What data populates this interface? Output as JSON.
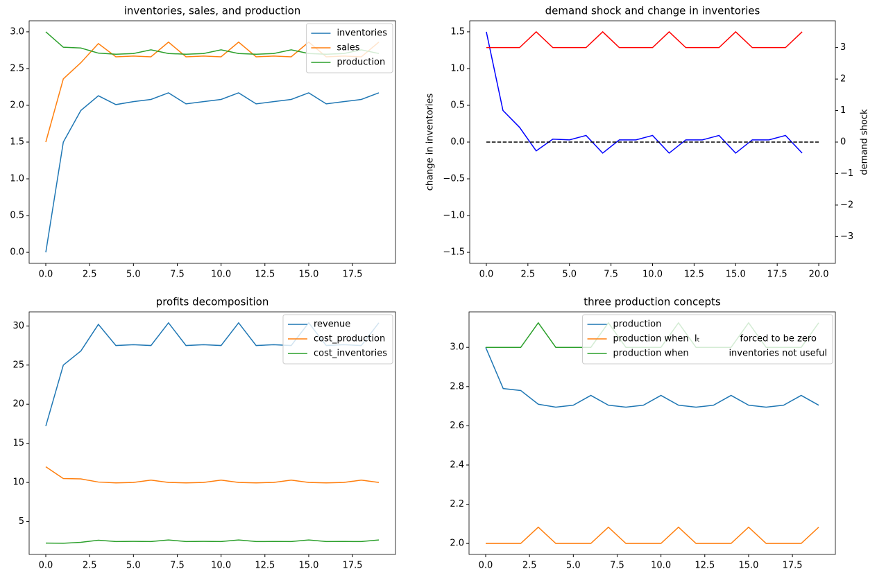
{
  "chart_data": [
    {
      "type": "line",
      "title": "inventories, sales, and production",
      "legend": "upper right",
      "x": [
        0,
        1,
        2,
        3,
        4,
        5,
        6,
        7,
        8,
        9,
        10,
        11,
        12,
        13,
        14,
        15,
        16,
        17,
        18,
        19
      ],
      "xlim": [
        -0.95,
        19.95
      ],
      "xticks": [
        {
          "value": 0,
          "label": "0.0"
        },
        {
          "value": 2.5,
          "label": "2.5"
        },
        {
          "value": 5,
          "label": "5.0"
        },
        {
          "value": 7.5,
          "label": "7.5"
        },
        {
          "value": 10,
          "label": "10.0"
        },
        {
          "value": 12.5,
          "label": "12.5"
        },
        {
          "value": 15,
          "label": "15.0"
        },
        {
          "value": 17.5,
          "label": "17.5"
        }
      ],
      "ylim": [
        -0.15,
        3.15
      ],
      "yticks": [
        {
          "value": 0,
          "label": "0.0"
        },
        {
          "value": 0.5,
          "label": "0.5"
        },
        {
          "value": 1,
          "label": "1.0"
        },
        {
          "value": 1.5,
          "label": "1.5"
        },
        {
          "value": 2,
          "label": "2.0"
        },
        {
          "value": 2.5,
          "label": "2.5"
        },
        {
          "value": 3,
          "label": "3.0"
        }
      ],
      "series": [
        {
          "name": "inventories",
          "color": "#1f77b4",
          "values": [
            0,
            1.5,
            1.93,
            2.13,
            2.01,
            2.05,
            2.08,
            2.17,
            2.02,
            2.05,
            2.08,
            2.17,
            2.02,
            2.05,
            2.08,
            2.17,
            2.02,
            2.05,
            2.08,
            2.17
          ]
        },
        {
          "name": "sales",
          "color": "#ff7f0e",
          "values": [
            1.5,
            2.36,
            2.58,
            2.84,
            2.66,
            2.67,
            2.66,
            2.86,
            2.66,
            2.67,
            2.66,
            2.86,
            2.66,
            2.67,
            2.66,
            2.86,
            2.66,
            2.67,
            2.66,
            2.86
          ]
        },
        {
          "name": "production",
          "color": "#2ca02c",
          "values": [
            3.0,
            2.79,
            2.78,
            2.71,
            2.695,
            2.705,
            2.755,
            2.705,
            2.695,
            2.705,
            2.755,
            2.705,
            2.695,
            2.705,
            2.755,
            2.705,
            2.695,
            2.705,
            2.755,
            2.705
          ]
        }
      ]
    },
    {
      "type": "line",
      "title": "demand shock and change in inventories",
      "ylabel": "change in inventories",
      "ylabel_color": "blue",
      "y2label": "demand shock",
      "y2label_color": "red",
      "x": [
        0,
        1,
        2,
        3,
        4,
        5,
        6,
        7,
        8,
        9,
        10,
        11,
        12,
        13,
        14,
        15,
        16,
        17,
        18,
        19
      ],
      "xlim": [
        -1,
        21
      ],
      "xticks": [
        {
          "value": 0,
          "label": "0.0"
        },
        {
          "value": 2.5,
          "label": "2.5"
        },
        {
          "value": 5,
          "label": "5.0"
        },
        {
          "value": 7.5,
          "label": "7.5"
        },
        {
          "value": 10,
          "label": "10.0"
        },
        {
          "value": 12.5,
          "label": "12.5"
        },
        {
          "value": 15,
          "label": "15.0"
        },
        {
          "value": 17.5,
          "label": "17.5"
        },
        {
          "value": 20,
          "label": "20.0"
        }
      ],
      "ylim": [
        -1.65,
        1.65
      ],
      "yticks": [
        {
          "value": -1.5,
          "label": "−1.5"
        },
        {
          "value": -1,
          "label": "−1.0"
        },
        {
          "value": -0.5,
          "label": "−0.5"
        },
        {
          "value": 0,
          "label": "0.0"
        },
        {
          "value": 0.5,
          "label": "0.5"
        },
        {
          "value": 1,
          "label": "1.0"
        },
        {
          "value": 1.5,
          "label": "1.5"
        }
      ],
      "y2lim": [
        -3.85,
        3.85
      ],
      "y2ticks": [
        {
          "value": -3,
          "label": "−3"
        },
        {
          "value": -2,
          "label": "−2"
        },
        {
          "value": -1,
          "label": "−1"
        },
        0,
        1,
        2,
        3
      ],
      "series": [
        {
          "color": "blue",
          "values": [
            1.5,
            0.43,
            0.2,
            -0.12,
            0.04,
            0.03,
            0.09,
            -0.15,
            0.03,
            0.03,
            0.09,
            -0.15,
            0.03,
            0.03,
            0.09,
            -0.15,
            0.03,
            0.03,
            0.09,
            -0.15
          ]
        },
        {
          "color": "black",
          "linestyle": "dashed",
          "x": [
            0,
            20
          ],
          "values": [
            0,
            0
          ]
        },
        {
          "color": "red",
          "axis": "y2",
          "values": [
            3,
            3,
            3,
            3.5,
            3,
            3,
            3,
            3.5,
            3,
            3,
            3,
            3.5,
            3,
            3,
            3,
            3.5,
            3,
            3,
            3,
            3.5
          ]
        }
      ]
    },
    {
      "type": "line",
      "title": "profits decomposition",
      "legend": "upper right",
      "x": [
        0,
        1,
        2,
        3,
        4,
        5,
        6,
        7,
        8,
        9,
        10,
        11,
        12,
        13,
        14,
        15,
        16,
        17,
        18,
        19
      ],
      "xlim": [
        -0.95,
        19.95
      ],
      "xticks": [
        {
          "value": 0,
          "label": "0.0"
        },
        {
          "value": 2.5,
          "label": "2.5"
        },
        {
          "value": 5,
          "label": "5.0"
        },
        {
          "value": 7.5,
          "label": "7.5"
        },
        {
          "value": 10,
          "label": "10.0"
        },
        {
          "value": 12.5,
          "label": "12.5"
        },
        {
          "value": 15,
          "label": "15.0"
        },
        {
          "value": 17.5,
          "label": "17.5"
        }
      ],
      "ylim": [
        0.8,
        31.8
      ],
      "yticks": [
        5,
        10,
        15,
        20,
        25,
        30
      ],
      "series": [
        {
          "name": "revenue",
          "color": "#1f77b4",
          "values": [
            17.2,
            25.0,
            26.8,
            30.2,
            27.5,
            27.6,
            27.5,
            30.4,
            27.5,
            27.6,
            27.5,
            30.4,
            27.5,
            27.6,
            27.5,
            30.4,
            27.5,
            27.6,
            27.5,
            30.4
          ]
        },
        {
          "name": "cost_production",
          "color": "#ff7f0e",
          "values": [
            12.0,
            10.5,
            10.45,
            10.05,
            9.95,
            10.0,
            10.3,
            10.0,
            9.95,
            10.0,
            10.3,
            10.0,
            9.95,
            10.0,
            10.3,
            10.0,
            9.95,
            10.0,
            10.3,
            10.0
          ]
        },
        {
          "name": "cost_inventories",
          "color": "#2ca02c",
          "values": [
            2.25,
            2.23,
            2.35,
            2.62,
            2.45,
            2.47,
            2.45,
            2.65,
            2.45,
            2.47,
            2.45,
            2.65,
            2.45,
            2.46,
            2.45,
            2.65,
            2.45,
            2.46,
            2.45,
            2.65
          ]
        }
      ]
    },
    {
      "type": "line",
      "title": "three production concepts",
      "legend": "upper right",
      "x": [
        0,
        1,
        2,
        3,
        4,
        5,
        6,
        7,
        8,
        9,
        10,
        11,
        12,
        13,
        14,
        15,
        16,
        17,
        18,
        19
      ],
      "xlim": [
        -0.95,
        19.95
      ],
      "xticks": [
        {
          "value": 0,
          "label": "0.0"
        },
        {
          "value": 2.5,
          "label": "2.5"
        },
        {
          "value": 5,
          "label": "5.0"
        },
        {
          "value": 7.5,
          "label": "7.5"
        },
        {
          "value": 10,
          "label": "10.0"
        },
        {
          "value": 12.5,
          "label": "12.5"
        },
        {
          "value": 15,
          "label": "15.0"
        },
        {
          "value": 17.5,
          "label": "17.5"
        }
      ],
      "ylim": [
        1.944,
        3.181
      ],
      "yticks": [
        {
          "value": 2,
          "label": "2.0"
        },
        {
          "value": 2.2,
          "label": "2.2"
        },
        {
          "value": 2.4,
          "label": "2.4"
        },
        {
          "value": 2.6,
          "label": "2.6"
        },
        {
          "value": 2.8,
          "label": "2.8"
        },
        {
          "value": 3,
          "label": "3.0"
        }
      ],
      "series": [
        {
          "name": "production",
          "color": "#1f77b4",
          "values": [
            3.0,
            2.79,
            2.78,
            2.71,
            2.695,
            2.705,
            2.755,
            2.705,
            2.695,
            2.705,
            2.755,
            2.705,
            2.695,
            2.705,
            2.755,
            2.705,
            2.695,
            2.705,
            2.755,
            2.705
          ]
        },
        {
          "name": "production when  Iₜ              forced to be zero",
          "color": "#ff7f0e",
          "values": [
            2,
            2,
            2,
            2.083,
            2,
            2,
            2,
            2.083,
            2,
            2,
            2,
            2.083,
            2,
            2,
            2,
            2.083,
            2,
            2,
            2,
            2.083
          ]
        },
        {
          "name": "production when              inventories not useful",
          "color": "#2ca02c",
          "values": [
            3,
            3,
            3,
            3.125,
            3,
            3,
            3,
            3.125,
            3,
            3,
            3,
            3.125,
            3,
            3,
            3,
            3.125,
            3,
            3,
            3,
            3.125
          ]
        }
      ]
    }
  ]
}
